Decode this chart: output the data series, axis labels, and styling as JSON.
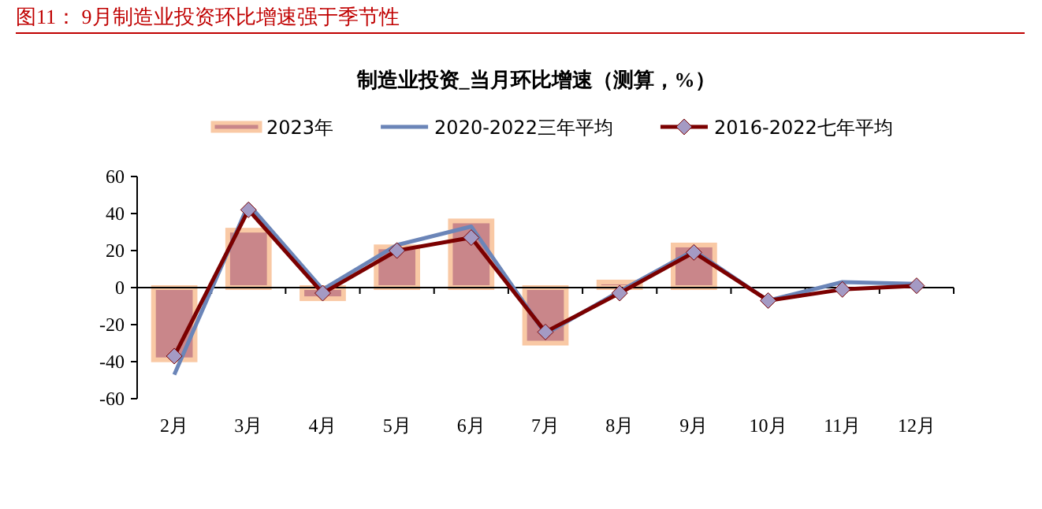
{
  "chart_data": {
    "type": "bar",
    "title": "图11：  9月制造业投资环比增速强于季节性",
    "subtitle": "制造业投资_当月环比增速（测算，%）",
    "categories": [
      "2月",
      "3月",
      "4月",
      "5月",
      "6月",
      "7月",
      "8月",
      "9月",
      "10月",
      "11月",
      "12月"
    ],
    "ylim": [
      -60,
      60
    ],
    "yticks": [
      -60,
      -40,
      -20,
      0,
      20,
      40,
      60
    ],
    "legend": "top",
    "series": [
      {
        "name": "2023年",
        "color": "#c9868a",
        "values": [
          -39,
          31,
          -6,
          22,
          36,
          -30,
          3,
          23,
          null,
          null,
          null
        ]
      },
      {
        "name": "2020-2022三年平均",
        "type": "line",
        "color": "#6b85b8",
        "marker": "none",
        "values": [
          -47,
          45,
          -1,
          23,
          33,
          -25,
          -2,
          20,
          -7,
          3,
          2
        ]
      },
      {
        "name": "2016-2022七年平均",
        "type": "line",
        "color": "#7b0000",
        "marker": "diamond",
        "values": [
          -37,
          42,
          -3,
          20,
          27,
          -24,
          -3,
          19,
          -7,
          -1,
          1
        ]
      }
    ]
  }
}
